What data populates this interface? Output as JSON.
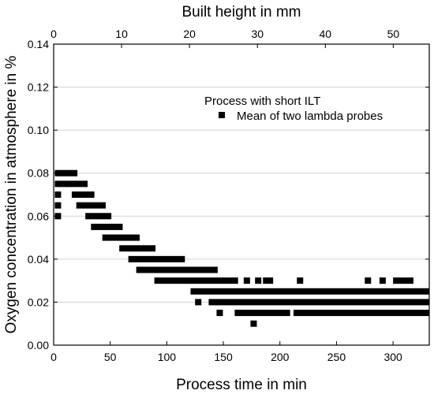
{
  "chart_data": {
    "type": "scatter",
    "title": "",
    "xlabel": "Process time in min",
    "x2label": "Built height in mm",
    "ylabel": "Oxygen concentration in atmosphere in %",
    "xlim": [
      0,
      332
    ],
    "x2lim": [
      0,
      55.3
    ],
    "ylim": [
      0,
      0.14
    ],
    "x_ticks": [
      "0",
      "50",
      "100",
      "150",
      "200",
      "250",
      "300"
    ],
    "x_tick_values": [
      0,
      50,
      100,
      150,
      200,
      250,
      300
    ],
    "x2_ticks": [
      "0",
      "10",
      "20",
      "30",
      "40",
      "50"
    ],
    "x2_tick_values": [
      0,
      10,
      20,
      30,
      40,
      50
    ],
    "y_ticks": [
      "0.00",
      "0.02",
      "0.04",
      "0.06",
      "0.08",
      "0.10",
      "0.12",
      "0.14"
    ],
    "y_tick_values": [
      0,
      0.02,
      0.04,
      0.06,
      0.08,
      0.1,
      0.12,
      0.14
    ],
    "grid": "horizontal",
    "legend": {
      "title": "Process with short ILT",
      "placement": "top-right",
      "entries": [
        "Mean of two lambda probes"
      ]
    },
    "marker_color": "#000000",
    "grid_color": "#d0d0d0",
    "series": [
      {
        "name": "Mean of two lambda probes",
        "marker": "square",
        "runs": [
          {
            "y": 0.08,
            "x_start": 1,
            "x_end": 21
          },
          {
            "y": 0.075,
            "x_start": 1,
            "x_end": 30
          },
          {
            "y": 0.07,
            "x_start": 1,
            "x_end": 5
          },
          {
            "y": 0.07,
            "x_start": 16,
            "x_end": 36
          },
          {
            "y": 0.065,
            "x_start": 1,
            "x_end": 3
          },
          {
            "y": 0.065,
            "x_start": 20,
            "x_end": 46
          },
          {
            "y": 0.06,
            "x_start": 1,
            "x_end": 3
          },
          {
            "y": 0.06,
            "x_start": 28,
            "x_end": 51
          },
          {
            "y": 0.055,
            "x_start": 33,
            "x_end": 61
          },
          {
            "y": 0.05,
            "x_start": 43,
            "x_end": 76
          },
          {
            "y": 0.045,
            "x_start": 58,
            "x_end": 90
          },
          {
            "y": 0.04,
            "x_start": 66,
            "x_end": 116
          },
          {
            "y": 0.035,
            "x_start": 73,
            "x_end": 145
          },
          {
            "y": 0.03,
            "x_start": 89,
            "x_end": 163
          },
          {
            "y": 0.03,
            "x_start": 168,
            "x_end": 172
          },
          {
            "y": 0.03,
            "x_start": 178,
            "x_end": 182
          },
          {
            "y": 0.03,
            "x_start": 185,
            "x_end": 194
          },
          {
            "y": 0.03,
            "x_start": 215,
            "x_end": 219
          },
          {
            "y": 0.03,
            "x_start": 275,
            "x_end": 279
          },
          {
            "y": 0.03,
            "x_start": 288,
            "x_end": 291
          },
          {
            "y": 0.03,
            "x_start": 300,
            "x_end": 318
          },
          {
            "y": 0.025,
            "x_start": 121,
            "x_end": 332
          },
          {
            "y": 0.02,
            "x_start": 125,
            "x_end": 130
          },
          {
            "y": 0.02,
            "x_start": 137,
            "x_end": 332
          },
          {
            "y": 0.015,
            "x_start": 144,
            "x_end": 148
          },
          {
            "y": 0.015,
            "x_start": 160,
            "x_end": 209
          },
          {
            "y": 0.015,
            "x_start": 212,
            "x_end": 332
          },
          {
            "y": 0.01,
            "x_start": 174,
            "x_end": 178
          }
        ]
      }
    ]
  }
}
